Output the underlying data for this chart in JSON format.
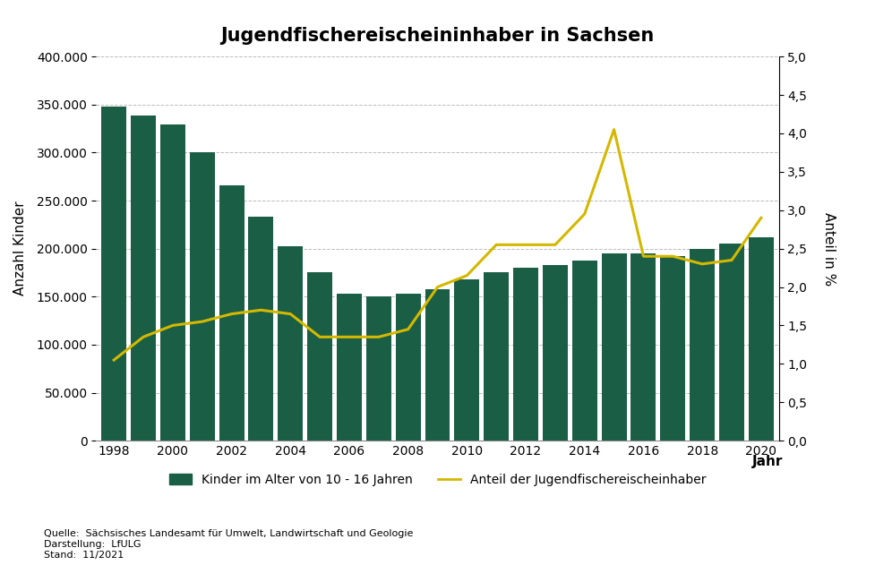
{
  "title": "Jugendfischereischeininhaber in Sachsen",
  "xlabel": "Jahr",
  "ylabel_left": "Anzahl Kinder",
  "ylabel_right": "Anteil in %",
  "years": [
    1998,
    1999,
    2000,
    2001,
    2002,
    2003,
    2004,
    2005,
    2006,
    2007,
    2008,
    2009,
    2010,
    2011,
    2012,
    2013,
    2014,
    2015,
    2016,
    2017,
    2018,
    2019,
    2020
  ],
  "bar_values": [
    348000,
    339000,
    329000,
    300000,
    266000,
    233000,
    202000,
    175000,
    153000,
    150000,
    153000,
    158000,
    168000,
    175000,
    180000,
    183000,
    188000,
    195000,
    195000,
    192000,
    200000,
    205000,
    212000
  ],
  "line_values": [
    1.05,
    1.35,
    1.5,
    1.55,
    1.65,
    1.7,
    1.65,
    1.35,
    1.35,
    1.35,
    1.45,
    2.0,
    2.15,
    2.55,
    2.55,
    2.55,
    2.95,
    4.05,
    2.4,
    2.4,
    2.3,
    2.35,
    2.9
  ],
  "bar_color": "#1a5e45",
  "line_color": "#d4b800",
  "ylim_left": [
    0,
    400000
  ],
  "ylim_right": [
    0,
    5.0
  ],
  "yticks_left": [
    0,
    50000,
    100000,
    150000,
    200000,
    250000,
    300000,
    350000,
    400000
  ],
  "yticks_right": [
    0.0,
    0.5,
    1.0,
    1.5,
    2.0,
    2.5,
    3.0,
    3.5,
    4.0,
    4.5,
    5.0
  ],
  "background_color": "#ffffff",
  "grid_color": "#bbbbbb",
  "legend_bar_label": "Kinder im Alter von 10 - 16 Jahren",
  "legend_line_label": "Anteil der Jugendfischereischeinhaber",
  "source_text": "Quelle:  Sächsisches Landesamt für Umwelt, Landwirtschaft und Geologie\nDarstellung:  LfULG\nStand:  11/2021",
  "title_fontsize": 15,
  "axis_fontsize": 11,
  "tick_fontsize": 10,
  "legend_fontsize": 10,
  "source_fontsize": 8
}
